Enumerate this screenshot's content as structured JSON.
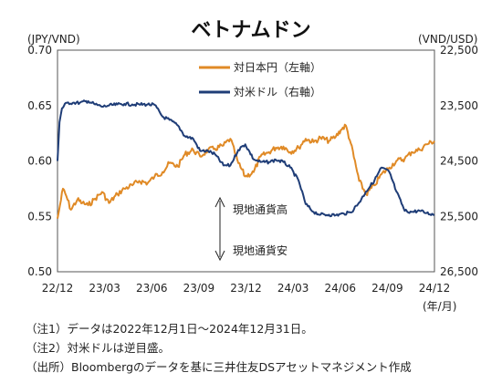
{
  "chart_data": {
    "type": "line",
    "title": "ベトナムドン",
    "left_axis_unit": "(JPY/VND)",
    "right_axis_unit": "(VND/USD)",
    "x_unit": "(年/月)",
    "x_ticks": [
      "22/12",
      "23/03",
      "23/06",
      "23/09",
      "23/12",
      "24/03",
      "24/06",
      "24/09",
      "24/12"
    ],
    "left_ylim": [
      0.5,
      0.7
    ],
    "left_ticks": [
      "0.50",
      "0.55",
      "0.60",
      "0.65",
      "0.70"
    ],
    "right_ylim_inverted": [
      22500,
      26500
    ],
    "right_ticks": [
      "22,500",
      "23,500",
      "24,500",
      "25,500",
      "26,500"
    ],
    "legend": {
      "placement": "top-center"
    },
    "arrow_labels": {
      "up": "現地通貨高",
      "down": "現地通貨安"
    },
    "series": [
      {
        "name": "対日本円（左軸）",
        "axis": "left",
        "color": "#e08a26",
        "x": [
          "2022-12-01",
          "2022-12-06",
          "2022-12-12",
          "2022-12-19",
          "2022-12-28",
          "2023-01-10",
          "2023-01-20",
          "2023-02-01",
          "2023-02-15",
          "2023-03-01",
          "2023-03-15",
          "2023-04-01",
          "2023-04-15",
          "2023-05-01",
          "2023-05-15",
          "2023-06-01",
          "2023-06-15",
          "2023-07-01",
          "2023-07-15",
          "2023-08-01",
          "2023-08-15",
          "2023-09-01",
          "2023-09-15",
          "2023-10-01",
          "2023-10-15",
          "2023-11-01",
          "2023-11-15",
          "2023-12-01",
          "2023-12-15",
          "2024-01-01",
          "2024-01-15",
          "2024-02-01",
          "2024-02-15",
          "2024-03-01",
          "2024-03-15",
          "2024-04-01",
          "2024-04-15",
          "2024-05-01",
          "2024-05-15",
          "2024-06-01",
          "2024-06-15",
          "2024-06-25",
          "2024-07-05",
          "2024-07-15",
          "2024-08-01",
          "2024-08-15",
          "2024-09-01",
          "2024-09-15",
          "2024-10-01",
          "2024-10-15",
          "2024-11-01",
          "2024-11-15",
          "2024-12-01",
          "2024-12-15",
          "2024-12-31"
        ],
        "y": [
          0.548,
          0.56,
          0.575,
          0.568,
          0.556,
          0.565,
          0.562,
          0.56,
          0.566,
          0.572,
          0.562,
          0.57,
          0.575,
          0.578,
          0.582,
          0.58,
          0.586,
          0.59,
          0.598,
          0.595,
          0.606,
          0.61,
          0.604,
          0.61,
          0.611,
          0.614,
          0.62,
          0.598,
          0.586,
          0.59,
          0.604,
          0.608,
          0.612,
          0.613,
          0.608,
          0.612,
          0.62,
          0.617,
          0.621,
          0.618,
          0.622,
          0.628,
          0.632,
          0.616,
          0.582,
          0.57,
          0.578,
          0.588,
          0.594,
          0.6,
          0.602,
          0.608,
          0.61,
          0.615,
          0.618
        ]
      },
      {
        "name": "対米ドル（右軸）",
        "axis": "right",
        "color": "#1f3d77",
        "x": [
          "2022-12-01",
          "2022-12-05",
          "2022-12-10",
          "2022-12-20",
          "2023-01-01",
          "2023-01-15",
          "2023-02-01",
          "2023-02-15",
          "2023-03-01",
          "2023-03-15",
          "2023-04-01",
          "2023-04-15",
          "2023-05-01",
          "2023-05-15",
          "2023-06-01",
          "2023-06-15",
          "2023-07-01",
          "2023-07-15",
          "2023-08-01",
          "2023-08-15",
          "2023-09-01",
          "2023-09-15",
          "2023-10-01",
          "2023-10-15",
          "2023-11-01",
          "2023-11-15",
          "2023-12-01",
          "2023-12-15",
          "2024-01-01",
          "2024-01-15",
          "2024-02-01",
          "2024-02-15",
          "2024-03-01",
          "2024-03-15",
          "2024-04-01",
          "2024-04-15",
          "2024-05-01",
          "2024-05-15",
          "2024-06-01",
          "2024-06-15",
          "2024-07-01",
          "2024-07-15",
          "2024-08-01",
          "2024-08-15",
          "2024-09-01",
          "2024-09-15",
          "2024-10-01",
          "2024-10-15",
          "2024-11-01",
          "2024-11-15",
          "2024-12-01",
          "2024-12-15",
          "2024-12-31"
        ],
        "y": [
          24500,
          23800,
          23550,
          23450,
          23450,
          23450,
          23420,
          23480,
          23520,
          23500,
          23480,
          23470,
          23480,
          23480,
          23480,
          23490,
          23700,
          23760,
          23860,
          24050,
          24100,
          24320,
          24320,
          24380,
          24580,
          24580,
          24300,
          24200,
          24470,
          24520,
          24520,
          24480,
          24520,
          24620,
          24860,
          25280,
          25420,
          25470,
          25470,
          25480,
          25450,
          25430,
          25250,
          25050,
          24850,
          24620,
          24700,
          25050,
          25400,
          25420,
          25400,
          25440,
          25470
        ]
      }
    ]
  },
  "notes": [
    "（注1）データは2022年12月1日～2024年12月31日。",
    "（注2）対米ドルは逆目盛。",
    "（出所）Bloombergのデータを基に三井住友DSアセットマネジメント作成"
  ]
}
